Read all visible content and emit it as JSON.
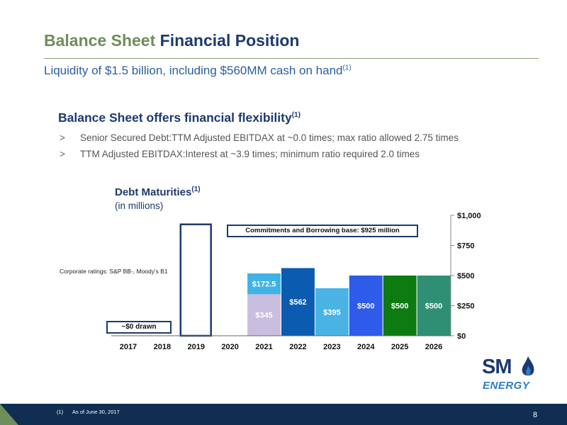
{
  "header": {
    "title_part1": "Balance Sheet",
    "title_part2": "Financial Position",
    "subtitle": "Liquidity of $1.5 billion, including $560MM cash on hand",
    "subtitle_footnote": "(1)"
  },
  "section": {
    "heading": "Balance Sheet offers financial flexibility",
    "heading_footnote": "(1)",
    "bullets": [
      {
        "marker": ">",
        "text": "Senior Secured Debt:TTM Adjusted EBITDAX at ~0.0 times; max ratio allowed 2.75 times"
      },
      {
        "marker": ">",
        "text": "TTM Adjusted EBITDAX:Interest at ~3.9 times; minimum ratio required 2.0 times"
      }
    ]
  },
  "chart_heading": {
    "title": "Debt Maturities",
    "title_footnote": "(1)",
    "subtitle": "(in millions)"
  },
  "annotations": {
    "ratings": "Corporate ratings: S&P BB-, Moody's B1",
    "commitment_box": "Commitments and Borrowing base: $925 million",
    "drawn_box": "~$0 drawn"
  },
  "chart_data": {
    "type": "bar",
    "stacked": true,
    "categories": [
      "2017",
      "2018",
      "2019",
      "2020",
      "2021",
      "2022",
      "2023",
      "2024",
      "2025",
      "2026"
    ],
    "ylim": [
      0,
      1000
    ],
    "yticks": [
      0,
      250,
      500,
      750,
      1000
    ],
    "ytick_labels": [
      "$0",
      "$250",
      "$500",
      "$750",
      "$1,000"
    ],
    "y_axis_position": "right",
    "grid": false,
    "legend": "none",
    "bars": [
      {
        "category": "2019",
        "value": 925,
        "style": "outline",
        "color": "#1d3a6e",
        "label": ""
      },
      {
        "category": "2021",
        "value": 345,
        "color": "#c9bedf",
        "label": "$345"
      },
      {
        "category": "2021",
        "value": 172.5,
        "color": "#3fb3e6",
        "label": "$172.5"
      },
      {
        "category": "2022",
        "value": 562,
        "color": "#0b5bb0",
        "label": "$562"
      },
      {
        "category": "2023",
        "value": 395,
        "color": "#49b4e4",
        "label": "$395"
      },
      {
        "category": "2024",
        "value": 500,
        "color": "#2e5be8",
        "label": "$500"
      },
      {
        "category": "2025",
        "value": 500,
        "color": "#0d7a12",
        "label": "$500"
      },
      {
        "category": "2026",
        "value": 500,
        "color": "#2f8f74",
        "label": "$500"
      }
    ]
  },
  "logo": {
    "brand": "SM",
    "tagline": "ENERGY"
  },
  "footer": {
    "footnote_number": "(1)",
    "footnote_text": "As of June 30, 2017",
    "page_number": "8"
  }
}
